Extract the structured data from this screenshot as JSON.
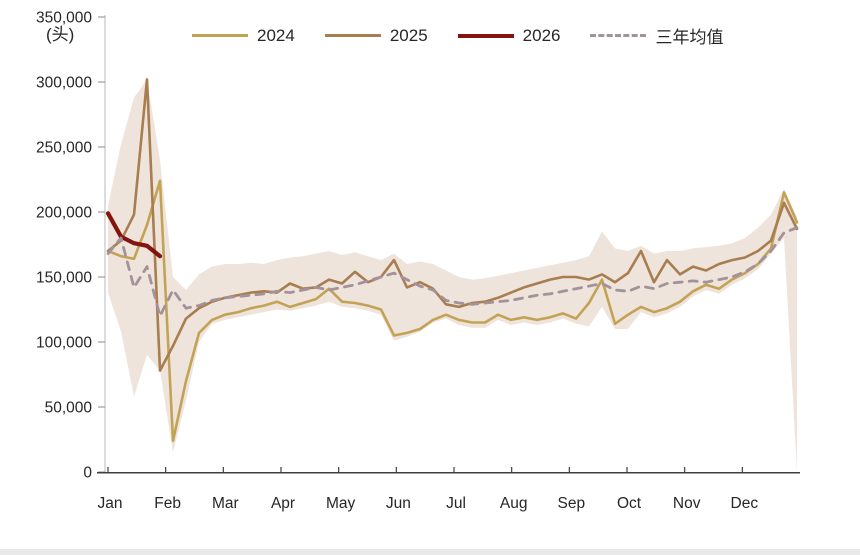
{
  "page": {
    "background": "#ffffff",
    "bottom_bar_color": "#e9e9e9"
  },
  "chart_data": {
    "type": "line",
    "title": "",
    "unit_label": "(头)",
    "xlabel": "",
    "ylabel": "(头)",
    "ylim": [
      0,
      350000
    ],
    "grid": false,
    "legend_position": "top",
    "y_axis": {
      "tick_interval": 50000,
      "tick_labels": [
        "0",
        "50,000",
        "100,000",
        "150,000",
        "200,000",
        "250,000",
        "300,000",
        "350,000"
      ]
    },
    "x_axis": {
      "tick_labels": [
        "Jan",
        "Feb",
        "Mar",
        "Apr",
        "May",
        "Jun",
        "Jul",
        "Aug",
        "Sep",
        "Oct",
        "Nov",
        "Dec"
      ]
    },
    "legend": [
      {
        "label": "2024",
        "color": "#c2a356",
        "dash": false,
        "thickness": 3
      },
      {
        "label": "2025",
        "color": "#a87d4f",
        "dash": false,
        "thickness": 3
      },
      {
        "label": "2026",
        "color": "#841410",
        "dash": false,
        "thickness": 4
      },
      {
        "label": "三年均值",
        "color": "#a3929a",
        "dash": true,
        "thickness": 3
      }
    ],
    "band": {
      "name": "three-year-range",
      "color": "#efe4dc",
      "min": [
        138000,
        108000,
        58000,
        90000,
        78000,
        15000,
        55000,
        100000,
        114000,
        117000,
        119000,
        121000,
        123000,
        125000,
        124000,
        126000,
        128000,
        131000,
        127000,
        126000,
        124000,
        121000,
        101000,
        104000,
        108000,
        115000,
        118000,
        113000,
        111000,
        111000,
        117000,
        113000,
        115000,
        113000,
        115000,
        118000,
        114000,
        112000,
        127000,
        110000,
        110000,
        123000,
        119000,
        122000,
        127000,
        135000,
        140000,
        137000,
        144000,
        149000,
        156000,
        168000,
        180000,
        0
      ],
      "max": [
        205000,
        252000,
        288000,
        302000,
        240000,
        150000,
        140000,
        152000,
        158000,
        160000,
        160000,
        161000,
        160000,
        163000,
        165000,
        166000,
        168000,
        170000,
        167000,
        169000,
        166000,
        163000,
        168000,
        160000,
        162000,
        160000,
        155000,
        150000,
        148000,
        149000,
        151000,
        153000,
        155000,
        157000,
        159000,
        161000,
        163000,
        166000,
        185000,
        172000,
        170000,
        174000,
        168000,
        170000,
        170000,
        172000,
        173000,
        174000,
        176000,
        180000,
        188000,
        198000,
        218000,
        196000
      ]
    },
    "series": [
      {
        "name": "2024",
        "color": "#c2a356",
        "width": 2.6,
        "dash": null,
        "values": [
          170000,
          166000,
          164000,
          190000,
          224000,
          24000,
          70000,
          107000,
          117000,
          121000,
          123000,
          126000,
          128000,
          131000,
          127000,
          130000,
          133000,
          141000,
          131000,
          130000,
          128000,
          125000,
          105000,
          107000,
          110000,
          117000,
          121000,
          117000,
          115000,
          115000,
          121000,
          117000,
          119000,
          117000,
          119000,
          122000,
          118000,
          130000,
          148000,
          114000,
          121000,
          127000,
          123000,
          126000,
          131000,
          139000,
          144000,
          141000,
          148000,
          153000,
          160000,
          172000,
          215000,
          192000
        ]
      },
      {
        "name": "2025",
        "color": "#a87d4f",
        "width": 2.6,
        "dash": null,
        "values": [
          170000,
          178000,
          198000,
          302000,
          78000,
          97000,
          118000,
          126000,
          131000,
          134000,
          136000,
          138000,
          139000,
          138000,
          145000,
          141000,
          142000,
          148000,
          145000,
          154000,
          146000,
          150000,
          163000,
          142000,
          146000,
          141000,
          129000,
          127000,
          130000,
          131000,
          134000,
          138000,
          142000,
          145000,
          148000,
          150000,
          150000,
          148000,
          152000,
          146000,
          153000,
          170000,
          146000,
          163000,
          152000,
          158000,
          155000,
          160000,
          163000,
          165000,
          170000,
          178000,
          207000,
          187000
        ]
      },
      {
        "name": "2026",
        "color": "#841410",
        "width": 4.2,
        "dash": null,
        "values": [
          199000,
          181000,
          176000,
          174000,
          166000
        ]
      },
      {
        "name": "三年均值",
        "color": "#a3929a",
        "width": 2.8,
        "dash": "8 7",
        "values": [
          168000,
          180000,
          142000,
          158000,
          120000,
          140000,
          126000,
          128000,
          132000,
          134000,
          135000,
          136000,
          137000,
          139000,
          138000,
          140000,
          142000,
          140000,
          142000,
          144000,
          147000,
          150000,
          153000,
          148000,
          143000,
          140000,
          132000,
          130000,
          129000,
          130000,
          131000,
          132000,
          134000,
          136000,
          137000,
          139000,
          141000,
          143000,
          145000,
          140000,
          139000,
          143000,
          141000,
          145000,
          146000,
          147000,
          146000,
          148000,
          150000,
          154000,
          160000,
          170000,
          184000,
          188000
        ]
      }
    ]
  }
}
